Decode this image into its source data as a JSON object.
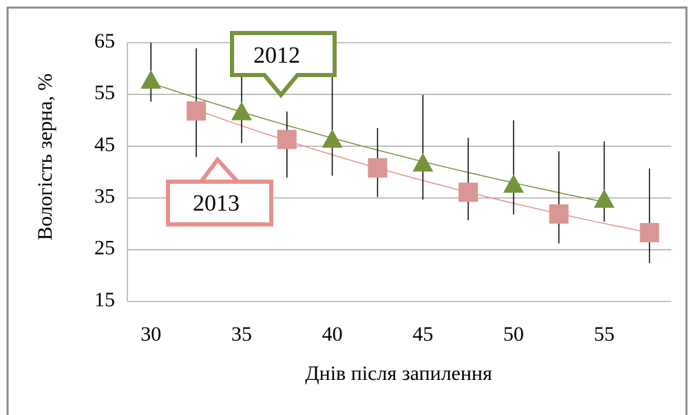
{
  "chart_data": {
    "type": "scatter",
    "x_label": "Днів після запилення",
    "y_label": "Вологість зерна, %",
    "xlim": [
      28.7,
      58.7
    ],
    "xticks": [
      30,
      35,
      40,
      45,
      50,
      55
    ],
    "ylim": [
      15,
      65
    ],
    "yticks": [
      15,
      25,
      35,
      45,
      55,
      65
    ],
    "grid": true,
    "trendline": "exponential",
    "series": [
      {
        "name": "2012",
        "marker": "triangle",
        "color": "#77933c",
        "trend_color": "#77933c",
        "x": [
          30,
          35,
          40,
          45,
          50,
          55
        ],
        "values": [
          57.7,
          51.6,
          46.3,
          41.7,
          37.6,
          34.7
        ],
        "errors_minus": [
          4.1,
          6,
          7,
          7,
          5.8,
          4.3
        ],
        "errors_plus": [
          7.3,
          6.8,
          13.6,
          13.2,
          12.4,
          11.2
        ]
      },
      {
        "name": "2013",
        "marker": "square",
        "color": "#d99694",
        "trend_color": "#e6908e",
        "x": [
          32.5,
          37.5,
          42.5,
          47.5,
          52.5,
          57.5
        ],
        "values": [
          51.8,
          46.3,
          40.8,
          36.1,
          31.9,
          28.3
        ],
        "errors_minus": [
          8.9,
          7.4,
          5.6,
          5.4,
          5.7,
          5.9
        ],
        "errors_plus": [
          12.1,
          5.4,
          7.7,
          10.5,
          12.1,
          12.4
        ]
      }
    ]
  }
}
